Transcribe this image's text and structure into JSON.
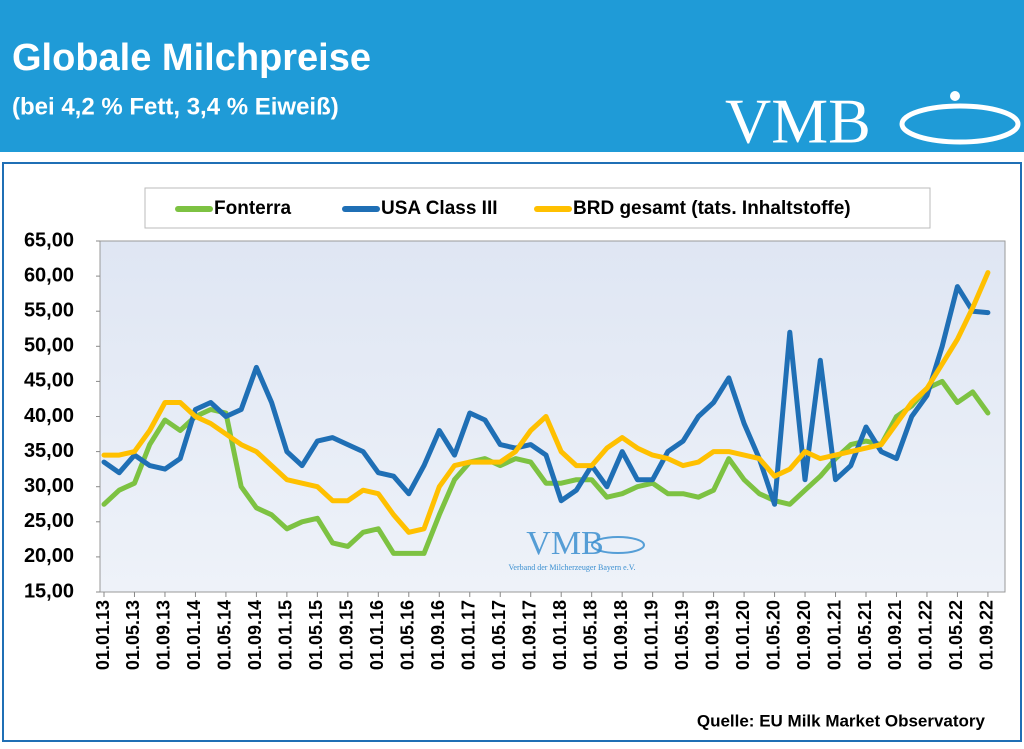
{
  "header": {
    "title": "Globale Milchpreise",
    "subtitle": "(bei 4,2 % Fett, 3,4 % Eiweiß)",
    "logo": "VMB"
  },
  "watermark": {
    "logo": "VMB",
    "caption": "Verband der Milcherzeuger Bayern e.V."
  },
  "source": "Quelle:  EU Milk Market Observatory",
  "chart_data": {
    "type": "line",
    "categories": [
      "01.01.13",
      null,
      "01.05.13",
      null,
      "01.09.13",
      null,
      "01.01.14",
      null,
      "01.05.14",
      null,
      "01.09.14",
      null,
      "01.01.15",
      null,
      "01.05.15",
      null,
      "01.09.15",
      null,
      "01.01.16",
      null,
      "01.05.16",
      null,
      "01.09.16",
      null,
      "01.01.17",
      null,
      "01.05.17",
      null,
      "01.09.17",
      null,
      "01.01.18",
      null,
      "01.05.18",
      null,
      "01.09.18",
      null,
      "01.01.19",
      null,
      "01.05.19",
      null,
      "01.09.19",
      null,
      "01.01.20",
      null,
      "01.05.20",
      null,
      "01.09.20",
      null,
      "01.01.21",
      null,
      "01.05.21",
      null,
      "01.09.21",
      null,
      "01.01.22",
      null,
      "01.05.22",
      null,
      "01.09.22"
    ],
    "series": [
      {
        "name": "Fonterra",
        "color": "#7dc242",
        "values": [
          27.5,
          29.5,
          30.5,
          36,
          39.5,
          38,
          40,
          41,
          40.5,
          30,
          27,
          26,
          24,
          25,
          25.5,
          22,
          21.5,
          23.5,
          24,
          20.5,
          20.5,
          20.5,
          26,
          31,
          33.5,
          34,
          33,
          34,
          33.5,
          30.5,
          30.5,
          31,
          31,
          28.5,
          29,
          30,
          30.5,
          29,
          29,
          28.5,
          29.5,
          34,
          31,
          29,
          28,
          27.5,
          29.5,
          31.5,
          34,
          36,
          36.5,
          36,
          40,
          41.5,
          44,
          45,
          42,
          43.5,
          40.5
        ]
      },
      {
        "name": "USA Class III",
        "color": "#1f6fb5",
        "values": [
          33.5,
          32,
          34.5,
          33,
          32.5,
          34,
          41,
          42,
          40,
          41,
          47,
          42,
          35,
          33,
          36.5,
          37,
          36,
          35,
          32,
          31.5,
          29,
          33,
          38,
          34.5,
          40.5,
          39.5,
          36,
          35.5,
          36,
          34.5,
          28,
          29.5,
          33,
          30,
          35,
          31,
          31,
          35,
          36.5,
          40,
          42,
          45.5,
          39,
          34,
          27.5,
          52,
          31,
          48,
          31,
          33,
          38.5,
          35,
          34,
          40,
          43,
          50,
          58.5,
          55,
          54.8
        ]
      },
      {
        "name": "BRD gesamt (tats. Inhaltstoffe)",
        "color": "#ffc000",
        "values": [
          34.5,
          34.5,
          35,
          38,
          42,
          42,
          40,
          39,
          37.5,
          36,
          35,
          33,
          31,
          30.5,
          30,
          28,
          28,
          29.5,
          29,
          26,
          23.5,
          24,
          30,
          33,
          33.5,
          33.5,
          33.5,
          35,
          38,
          40,
          35,
          33,
          33,
          35.5,
          37,
          35.5,
          34.5,
          34,
          33,
          33.5,
          35,
          35,
          34.5,
          34,
          31.5,
          32.5,
          35,
          34,
          34.5,
          35,
          35.5,
          36,
          39,
          42,
          44,
          47.5,
          51,
          55.5,
          60.5
        ]
      }
    ],
    "ylim": [
      15,
      65
    ],
    "yticks": [
      {
        "value": 15,
        "label": "15,00"
      },
      {
        "value": 20,
        "label": "20,00"
      },
      {
        "value": 25,
        "label": "25,00"
      },
      {
        "value": 30,
        "label": "30,00"
      },
      {
        "value": 35,
        "label": "35,00"
      },
      {
        "value": 40,
        "label": "40,00"
      },
      {
        "value": 45,
        "label": "45,00"
      },
      {
        "value": 50,
        "label": "50,00"
      },
      {
        "value": 55,
        "label": "55,00"
      },
      {
        "value": 60,
        "label": "60,00"
      },
      {
        "value": 65,
        "label": "65,00"
      }
    ],
    "grid": false,
    "legend": "top"
  }
}
